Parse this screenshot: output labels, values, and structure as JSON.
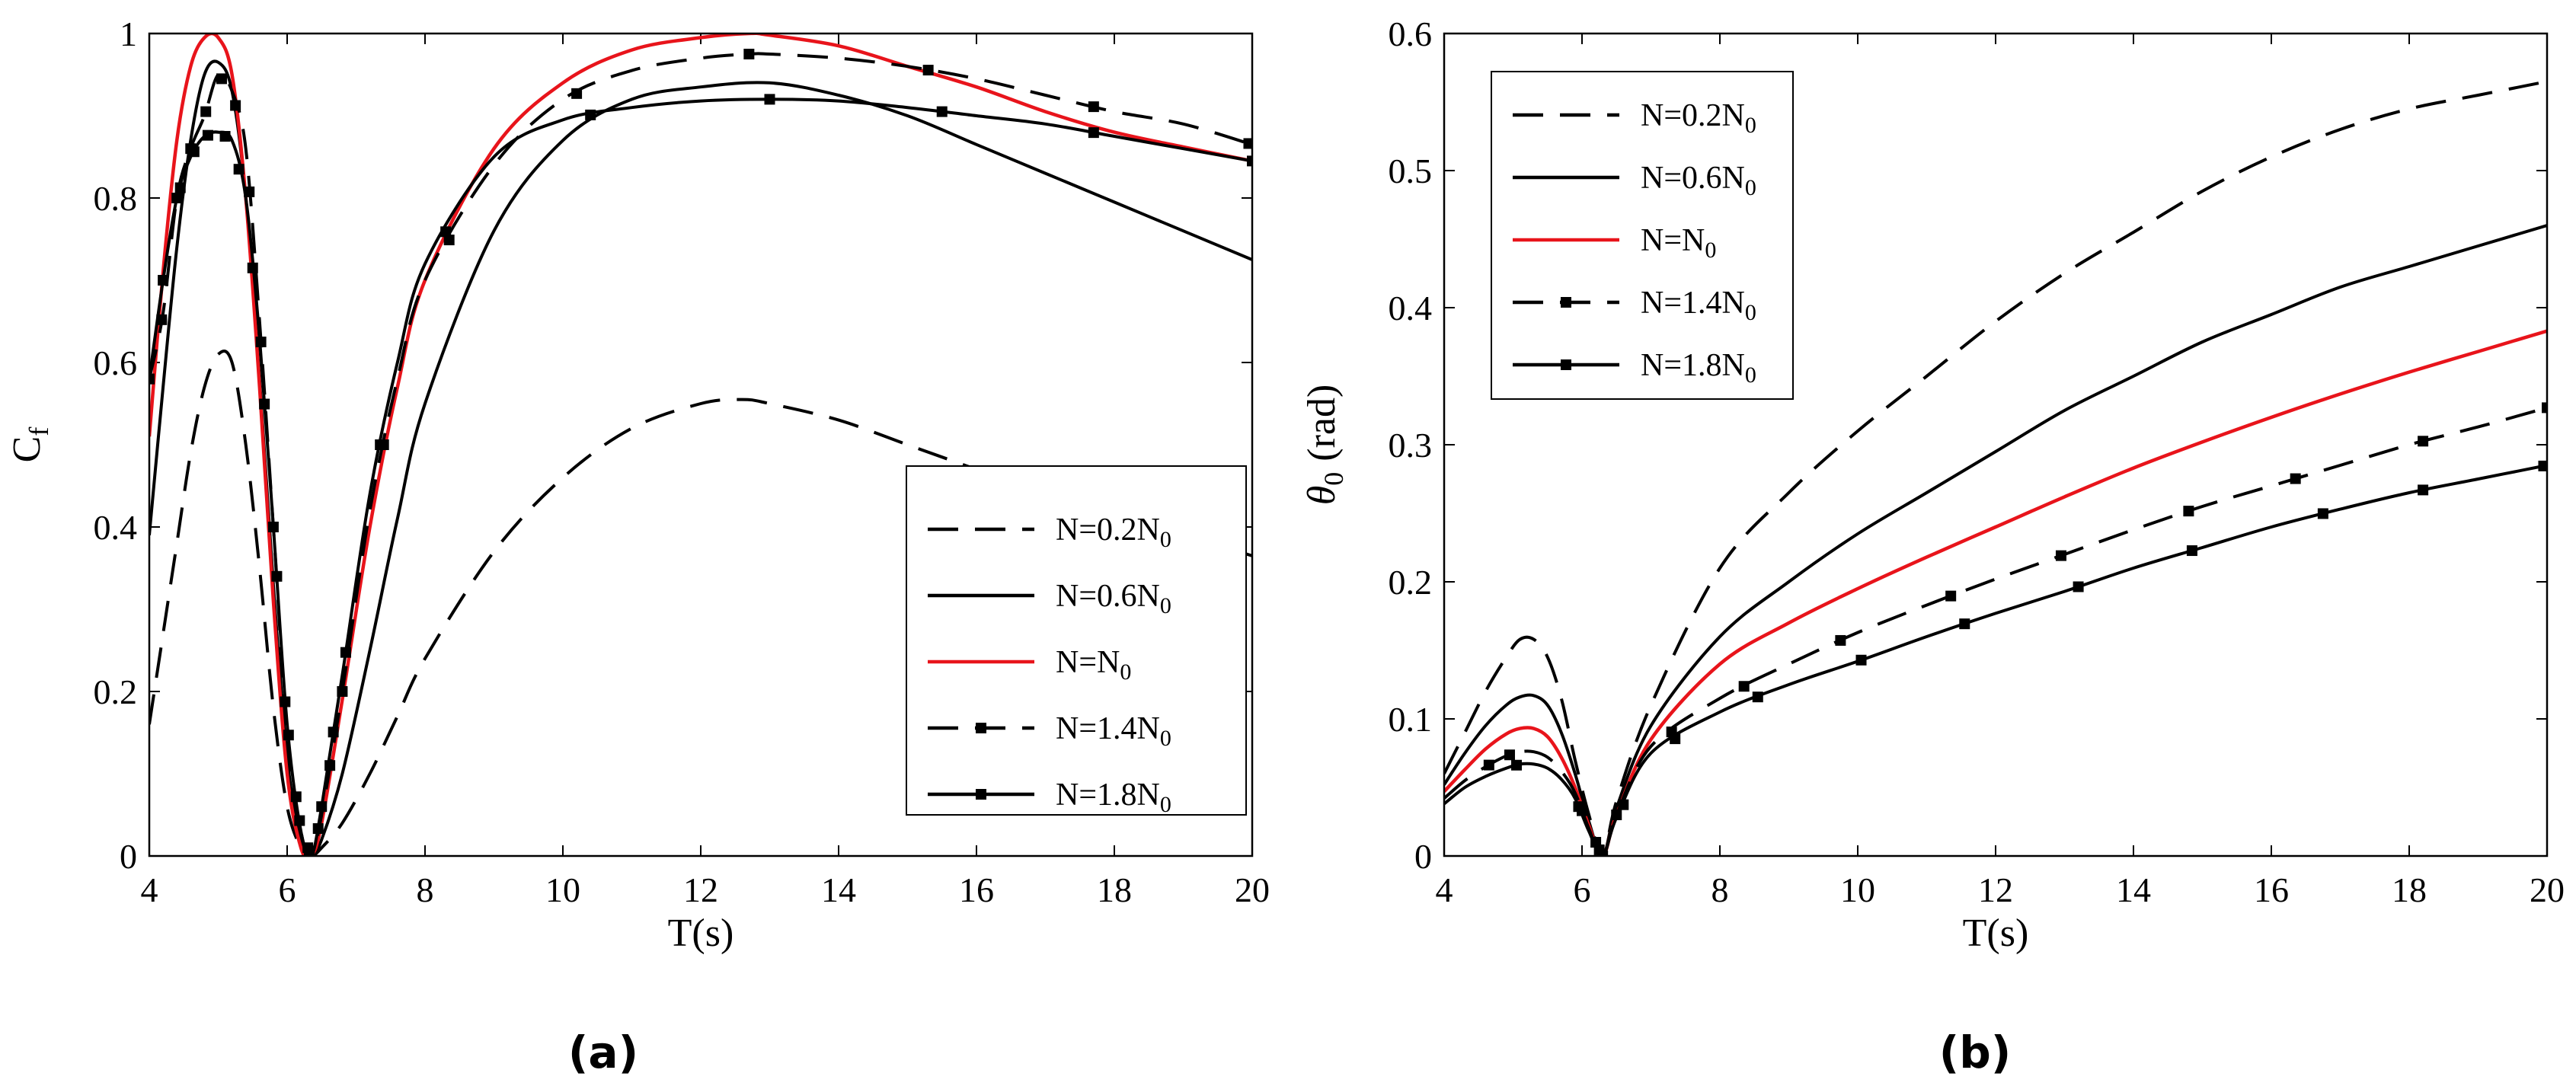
{
  "chart_data": [
    {
      "panel": "(a)",
      "type": "line",
      "xlabel": "T(s)",
      "ylabel": {
        "main": "C",
        "sub": "f"
      },
      "xlim": [
        4,
        20
      ],
      "ylim": [
        0,
        1
      ],
      "xticks": [
        "4",
        "6",
        "8",
        "10",
        "12",
        "14",
        "16",
        "18",
        "20"
      ],
      "yticks": [
        "0",
        "0.2",
        "0.4",
        "0.6",
        "0.8",
        "1"
      ],
      "legend_position": "bottom-right",
      "series": [
        {
          "name": "N=0.2N",
          "sub": "0",
          "color": "#000000",
          "style": "dashed",
          "marker": "none",
          "x": [
            4,
            4.2,
            4.4,
            4.6,
            4.8,
            5.0,
            5.2,
            5.4,
            5.6,
            5.8,
            6.0,
            6.2,
            6.35,
            6.5,
            6.8,
            7.2,
            7.6,
            8,
            9,
            10,
            11,
            12,
            12.6,
            13,
            14,
            15,
            16,
            17,
            18,
            19,
            20
          ],
          "y": [
            0.16,
            0.27,
            0.38,
            0.49,
            0.57,
            0.61,
            0.6,
            0.5,
            0.35,
            0.18,
            0.06,
            0.01,
            0.0,
            0.01,
            0.04,
            0.1,
            0.17,
            0.24,
            0.37,
            0.46,
            0.52,
            0.55,
            0.555,
            0.55,
            0.53,
            0.5,
            0.47,
            0.44,
            0.41,
            0.39,
            0.365
          ]
        },
        {
          "name": "N=0.6N",
          "sub": "0",
          "color": "#000000",
          "style": "solid",
          "marker": "none",
          "x": [
            4,
            4.2,
            4.4,
            4.6,
            4.8,
            5.0,
            5.2,
            5.4,
            5.6,
            5.8,
            6.0,
            6.2,
            6.35,
            6.5,
            6.8,
            7.2,
            7.6,
            8,
            9,
            10,
            11,
            12,
            13,
            14,
            15,
            16,
            17,
            18,
            19,
            20
          ],
          "y": [
            0.39,
            0.57,
            0.74,
            0.87,
            0.95,
            0.965,
            0.93,
            0.8,
            0.58,
            0.33,
            0.12,
            0.02,
            0.0,
            0.02,
            0.1,
            0.25,
            0.41,
            0.55,
            0.76,
            0.87,
            0.92,
            0.935,
            0.94,
            0.925,
            0.9,
            0.865,
            0.83,
            0.795,
            0.76,
            0.725
          ]
        },
        {
          "name": "N=N",
          "sub": "0",
          "color": "#e8141b",
          "style": "solid",
          "marker": "none",
          "x": [
            4,
            4.2,
            4.4,
            4.6,
            4.8,
            5.0,
            5.2,
            5.4,
            5.6,
            5.8,
            6.0,
            6.2,
            6.35,
            6.5,
            6.8,
            7.2,
            7.6,
            8,
            9,
            10,
            11,
            12,
            12.7,
            13,
            14,
            15,
            16,
            17,
            18,
            19,
            20
          ],
          "y": [
            0.51,
            0.71,
            0.87,
            0.96,
            0.995,
            0.995,
            0.95,
            0.8,
            0.57,
            0.31,
            0.1,
            0.01,
            0.0,
            0.04,
            0.19,
            0.4,
            0.57,
            0.7,
            0.86,
            0.94,
            0.98,
            0.995,
            1.0,
            0.998,
            0.985,
            0.96,
            0.935,
            0.905,
            0.88,
            0.862,
            0.845
          ]
        },
        {
          "name": "N=1.4N",
          "sub": "0",
          "color": "#000000",
          "style": "dashed",
          "marker": "square",
          "x": [
            4,
            4.2,
            4.4,
            4.6,
            4.8,
            5.0,
            5.2,
            5.4,
            5.6,
            5.8,
            6.0,
            6.2,
            6.35,
            6.5,
            6.8,
            7.2,
            7.6,
            8,
            9,
            10,
            11,
            12,
            12.7,
            13,
            14,
            15,
            16,
            17,
            18,
            19,
            20
          ],
          "y": [
            0.58,
            0.66,
            0.8,
            0.86,
            0.9,
            0.95,
            0.93,
            0.86,
            0.65,
            0.4,
            0.15,
            0.03,
            0.0,
            0.05,
            0.2,
            0.42,
            0.58,
            0.7,
            0.84,
            0.92,
            0.955,
            0.97,
            0.975,
            0.975,
            0.97,
            0.96,
            0.945,
            0.925,
            0.905,
            0.89,
            0.865
          ],
          "marker_x": [
            4.0,
            4.18,
            4.4,
            4.6,
            4.82,
            5.05,
            5.25,
            5.45,
            5.62,
            5.8,
            5.97,
            6.13,
            6.3,
            6.45,
            6.62,
            6.8,
            7.4,
            8.35,
            10.2,
            12.7,
            15.3,
            17.7,
            19.95
          ]
        },
        {
          "name": "N=1.8N",
          "sub": "0",
          "color": "#000000",
          "style": "solid",
          "marker": "square",
          "x": [
            4,
            4.2,
            4.4,
            4.6,
            4.8,
            5.0,
            5.2,
            5.4,
            5.6,
            5.8,
            6.0,
            6.2,
            6.35,
            6.5,
            6.8,
            7.2,
            7.6,
            8,
            9,
            10,
            11,
            12,
            13,
            14,
            15,
            16,
            17,
            18,
            19,
            20
          ],
          "y": [
            0.58,
            0.7,
            0.8,
            0.85,
            0.875,
            0.88,
            0.87,
            0.8,
            0.63,
            0.4,
            0.16,
            0.03,
            0.0,
            0.06,
            0.22,
            0.44,
            0.6,
            0.72,
            0.85,
            0.895,
            0.91,
            0.918,
            0.92,
            0.918,
            0.91,
            0.9,
            0.89,
            0.875,
            0.86,
            0.845
          ],
          "marker_x": [
            4.0,
            4.2,
            4.45,
            4.65,
            4.85,
            5.1,
            5.3,
            5.5,
            5.67,
            5.85,
            6.02,
            6.18,
            6.32,
            6.5,
            6.67,
            6.85,
            7.35,
            8.3,
            10.4,
            13.0,
            15.5,
            17.7,
            20.0
          ]
        }
      ]
    },
    {
      "panel": "(b)",
      "type": "line",
      "xlabel": "T(s)",
      "ylabel": {
        "symbol": "θ",
        "sub": "0",
        "unit": "(rad)"
      },
      "xlim": [
        4,
        20
      ],
      "ylim": [
        0,
        0.6
      ],
      "xticks": [
        "4",
        "6",
        "8",
        "10",
        "12",
        "14",
        "16",
        "18",
        "20"
      ],
      "yticks": [
        "0",
        "0.1",
        "0.2",
        "0.3",
        "0.4",
        "0.5",
        "0.6"
      ],
      "legend_position": "top-left",
      "series": [
        {
          "name": "N=0.2N",
          "sub": "0",
          "color": "#000000",
          "style": "dashed",
          "marker": "none",
          "x": [
            4,
            4.3,
            4.6,
            4.9,
            5.1,
            5.3,
            5.5,
            5.7,
            5.9,
            6.1,
            6.3,
            6.5,
            7,
            8,
            9,
            10,
            11,
            12,
            13,
            14,
            15,
            16,
            17,
            18,
            19,
            20
          ],
          "y": [
            0.06,
            0.09,
            0.12,
            0.145,
            0.158,
            0.158,
            0.145,
            0.115,
            0.07,
            0.03,
            0.0,
            0.04,
            0.11,
            0.21,
            0.265,
            0.31,
            0.35,
            0.39,
            0.425,
            0.455,
            0.485,
            0.51,
            0.53,
            0.545,
            0.555,
            0.565
          ]
        },
        {
          "name": "N=0.6N",
          "sub": "0",
          "color": "#000000",
          "style": "solid",
          "marker": "none",
          "x": [
            4,
            4.3,
            4.6,
            4.9,
            5.1,
            5.3,
            5.5,
            5.7,
            5.9,
            6.1,
            6.3,
            6.5,
            7,
            8,
            9,
            10,
            11,
            12,
            13,
            14,
            15,
            16,
            17,
            18,
            19,
            20
          ],
          "y": [
            0.052,
            0.075,
            0.095,
            0.11,
            0.116,
            0.117,
            0.11,
            0.09,
            0.06,
            0.025,
            0.0,
            0.035,
            0.095,
            0.16,
            0.2,
            0.235,
            0.265,
            0.295,
            0.325,
            0.35,
            0.375,
            0.395,
            0.415,
            0.43,
            0.445,
            0.46
          ]
        },
        {
          "name": "N=N",
          "sub": "0",
          "color": "#e8141b",
          "style": "solid",
          "marker": "none",
          "x": [
            4,
            4.3,
            4.6,
            4.9,
            5.1,
            5.3,
            5.5,
            5.7,
            5.9,
            6.1,
            6.3,
            6.5,
            7,
            8,
            9,
            10,
            11,
            12,
            13,
            14,
            15,
            16,
            17,
            18,
            19,
            20
          ],
          "y": [
            0.047,
            0.063,
            0.078,
            0.089,
            0.093,
            0.093,
            0.087,
            0.072,
            0.05,
            0.022,
            0.0,
            0.03,
            0.085,
            0.14,
            0.17,
            0.195,
            0.218,
            0.24,
            0.262,
            0.283,
            0.302,
            0.32,
            0.337,
            0.353,
            0.368,
            0.383
          ]
        },
        {
          "name": "N=1.4N",
          "sub": "0",
          "color": "#000000",
          "style": "dashed",
          "marker": "square",
          "x": [
            4,
            4.3,
            4.6,
            4.9,
            5.1,
            5.3,
            5.5,
            5.7,
            5.9,
            6.1,
            6.3,
            6.5,
            7,
            8,
            9,
            10,
            11,
            12,
            13,
            14,
            15,
            16,
            17,
            18,
            19,
            20
          ],
          "y": [
            0.042,
            0.055,
            0.065,
            0.073,
            0.076,
            0.076,
            0.072,
            0.062,
            0.046,
            0.02,
            0.0,
            0.03,
            0.08,
            0.115,
            0.14,
            0.163,
            0.183,
            0.202,
            0.22,
            0.238,
            0.255,
            0.27,
            0.285,
            0.3,
            0.313,
            0.327
          ],
          "marker_x": [
            4.65,
            4.95,
            6.0,
            6.2,
            6.3,
            6.5,
            7.3,
            8.35,
            9.75,
            11.35,
            12.95,
            14.8,
            16.35,
            18.2,
            20.0
          ]
        },
        {
          "name": "N=1.8N",
          "sub": "0",
          "color": "#000000",
          "style": "solid",
          "marker": "square",
          "x": [
            4,
            4.3,
            4.6,
            4.9,
            5.1,
            5.3,
            5.5,
            5.7,
            5.9,
            6.1,
            6.3,
            6.5,
            7,
            8,
            9,
            10,
            11,
            12,
            13,
            14,
            15,
            16,
            17,
            18,
            19,
            20
          ],
          "y": [
            0.038,
            0.05,
            0.058,
            0.064,
            0.067,
            0.067,
            0.064,
            0.056,
            0.042,
            0.018,
            0.0,
            0.028,
            0.075,
            0.105,
            0.125,
            0.142,
            0.16,
            0.177,
            0.193,
            0.21,
            0.225,
            0.24,
            0.253,
            0.265,
            0.275,
            0.285
          ],
          "marker_x": [
            5.05,
            5.95,
            6.25,
            6.6,
            7.35,
            8.55,
            10.05,
            11.55,
            13.2,
            14.85,
            16.75,
            18.2,
            19.95
          ]
        }
      ]
    }
  ]
}
